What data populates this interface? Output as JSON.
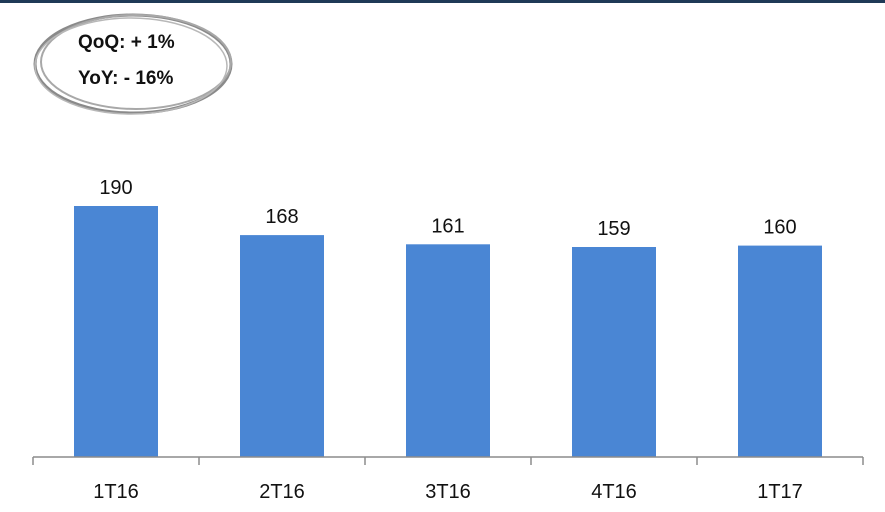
{
  "badge": {
    "qoq": "QoQ: + 1%",
    "yoy": "YoY: - 16%"
  },
  "chart_data": {
    "type": "bar",
    "categories": [
      "1T16",
      "2T16",
      "3T16",
      "4T16",
      "1T17"
    ],
    "values": [
      190,
      168,
      161,
      159,
      160
    ],
    "data_labels": [
      "190",
      "168",
      "161",
      "159",
      "160"
    ],
    "title": "",
    "xlabel": "",
    "ylabel": "",
    "ylim": [
      0,
      190
    ],
    "grid": false,
    "legend": "none",
    "bar_color": "#4a86d4",
    "axis_color": "#8c8c8c"
  }
}
